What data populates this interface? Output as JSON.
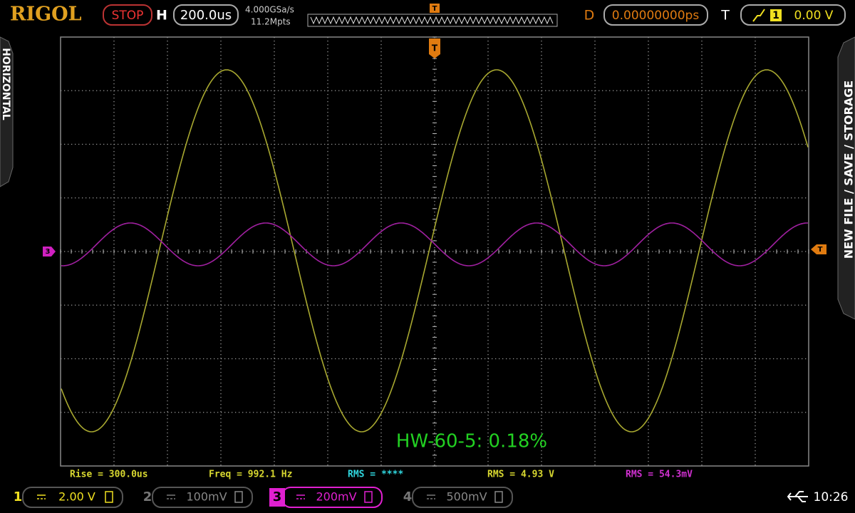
{
  "top_bar": {
    "brand": "RIGOL",
    "run_state": "STOP",
    "horizontal_label": "H",
    "timebase": "200.0us",
    "sample_rate": "4.000GSa/s",
    "memory_depth": "11.2Mpts",
    "delay_label": "D",
    "delay": "0.00000000ps",
    "trigger_label": "T",
    "trigger_source": "1",
    "trigger_level": "0.00 V"
  },
  "side_tabs": {
    "left": "HORIZONTAL",
    "right": "NEW FILE / SAVE / STORAGE"
  },
  "markers": {
    "channel_3": "3",
    "trigger_right": "T",
    "trigger_top": "T",
    "trigger_overview": "T"
  },
  "annotation": "HW-60-5: 0.18%",
  "measurements": [
    "Rise = 300.0us",
    "Freq = 992.1 Hz",
    "RMS = ****",
    "RMS = 4.93 V",
    "RMS = 54.3mV"
  ],
  "channels": [
    {
      "number": "1",
      "scale": "2.00 V"
    },
    {
      "number": "2",
      "scale": "100mV"
    },
    {
      "number": "3",
      "scale": "200mV"
    },
    {
      "number": "4",
      "scale": "500mV"
    }
  ],
  "status": {
    "time": "10:26"
  }
}
